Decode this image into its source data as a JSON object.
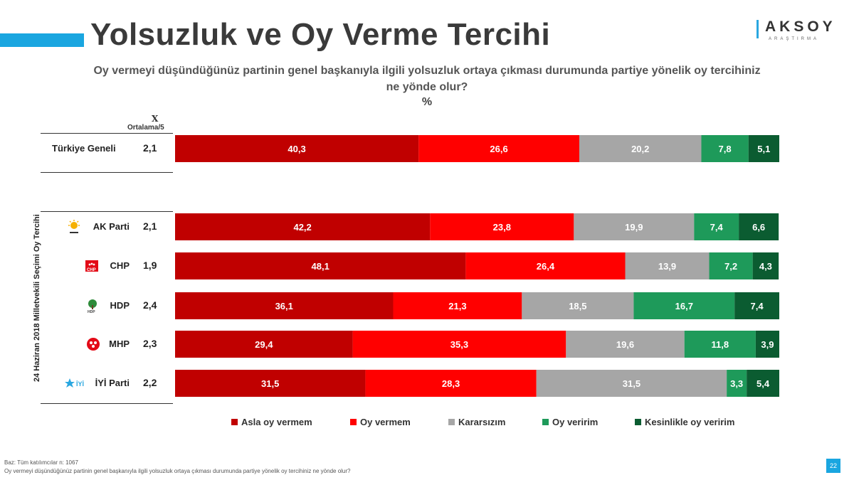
{
  "title": "Yolsuzluk ve Oy Verme Tercihi",
  "logo": {
    "text": "AKSOY",
    "subtitle": "ARAŞTIRMA"
  },
  "question": "Oy vermeyi düşündüğünüz partinin genel başkanıyla ilgili yolsuzluk ortaya çıkması durumunda partiye yönelik oy tercihiniz ne yönde olur?",
  "unit": "%",
  "avg_header": {
    "x": "X",
    "label": "Ortalama/5"
  },
  "group_label": "24 Haziran 2018 Milletvekili Seçimi Oy Tercihi",
  "footer": {
    "base": "Baz: Tüm katılımcılar n: 1067",
    "question": "Oy vermeyi düşündüğünüz partinin genel başkanıyla ilgili yolsuzluk ortaya çıkması durumunda partiye yönelik oy tercihiniz ne yönde olur?"
  },
  "page_number": "22",
  "colors": {
    "asla": "#c00000",
    "oy_vermem": "#ff0000",
    "kararsiz": "#a6a6a6",
    "oy_veririm": "#1e9a5a",
    "kesinlikle": "#0b5c31",
    "accent": "#1aa6e0"
  },
  "chart_data": {
    "type": "bar",
    "orientation": "horizontal",
    "stacked": true,
    "xlim": [
      0,
      100
    ],
    "categories": [
      "Türkiye Geneli",
      "AK Parti",
      "CHP",
      "HDP",
      "MHP",
      "İYİ Parti"
    ],
    "averages": [
      "2,1",
      "2,1",
      "1,9",
      "2,4",
      "2,3",
      "2,2"
    ],
    "party_icons": [
      "",
      "ak-parti-logo",
      "chp-logo",
      "hdp-logo",
      "mhp-logo",
      "iyi-parti-logo"
    ],
    "series": [
      {
        "name": "Asla oy vermem",
        "color": "#c00000",
        "values": [
          40.3,
          42.2,
          48.1,
          36.1,
          29.4,
          31.5
        ]
      },
      {
        "name": "Oy vermem",
        "color": "#ff0000",
        "values": [
          26.6,
          23.8,
          26.4,
          21.3,
          35.3,
          28.3
        ]
      },
      {
        "name": "Kararsızım",
        "color": "#a6a6a6",
        "values": [
          20.2,
          19.9,
          13.9,
          18.5,
          19.6,
          31.5
        ]
      },
      {
        "name": "Oy veririm",
        "color": "#1e9a5a",
        "values": [
          7.8,
          7.4,
          7.2,
          16.7,
          11.8,
          3.3
        ]
      },
      {
        "name": "Kesinlikle oy veririm",
        "color": "#0b5c31",
        "values": [
          5.1,
          6.6,
          4.3,
          7.4,
          3.9,
          5.4
        ]
      }
    ],
    "legend_position": "bottom"
  }
}
